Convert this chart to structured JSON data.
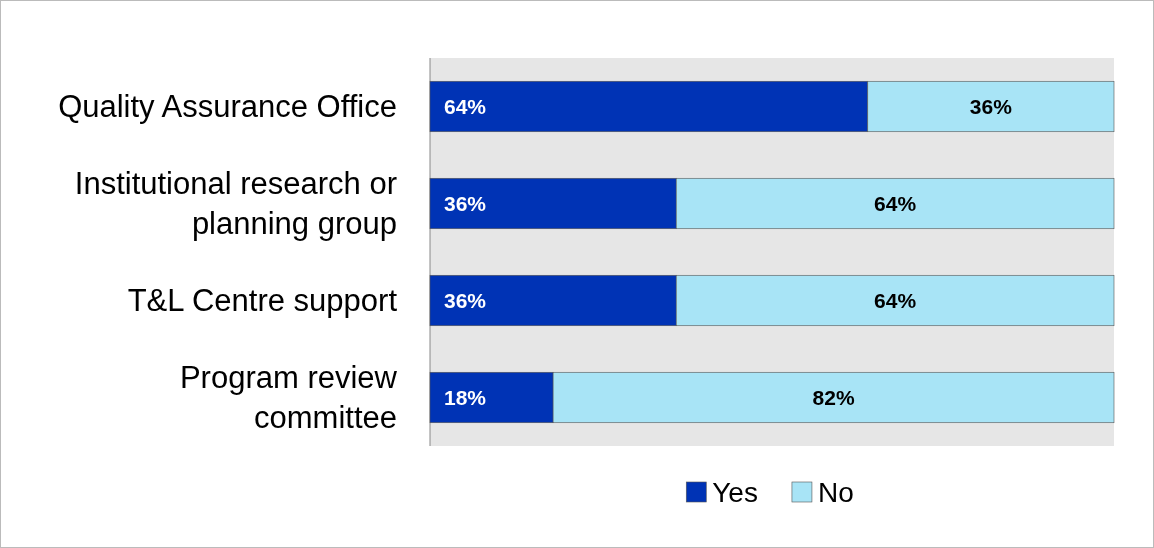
{
  "chart_data": {
    "type": "bar",
    "orientation": "horizontal",
    "stacked": true,
    "categories": [
      "Quality Assurance Office",
      "Institutional research or planning group",
      "T&L Centre support",
      "Program review committee"
    ],
    "series": [
      {
        "name": "Yes",
        "color": "#0033b5",
        "values": [
          64,
          36,
          36,
          18
        ],
        "value_labels": [
          "64%",
          "36%",
          "36%",
          "18%"
        ]
      },
      {
        "name": "No",
        "color": "#a8e4f6",
        "values": [
          36,
          64,
          64,
          82
        ],
        "value_labels": [
          "36%",
          "64%",
          "64%",
          "82%"
        ]
      }
    ],
    "legend": "bottom"
  }
}
